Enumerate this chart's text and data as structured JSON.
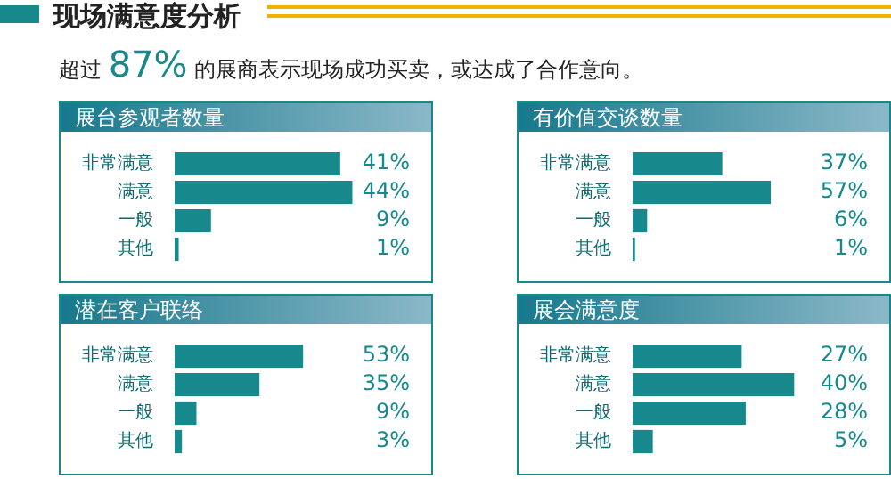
{
  "chart_data": [
    {
      "type": "bar",
      "title": "现场满意度分析",
      "subtitle": "超过 87% 的展商表示现场成功买卖，或达成了合作意向。",
      "annotations": [
        "展台参观者数量"
      ],
      "orientation": "horizontal",
      "categories": [
        "非常满意",
        "满意",
        "一般",
        "其他"
      ],
      "values": [
        41,
        44,
        9,
        1
      ],
      "value_labels": [
        "41%",
        "44%",
        "9%",
        "1%"
      ],
      "color": "#17898c",
      "tick_labels": "y",
      "grid": false,
      "legend": false
    },
    {
      "type": "bar",
      "annotations": [
        "有价值交谈数量"
      ],
      "orientation": "horizontal",
      "categories": [
        "非常满意",
        "满意",
        "一般",
        "其他"
      ],
      "values": [
        37,
        57,
        6,
        1
      ],
      "value_labels": [
        "37%",
        "57%",
        "6%",
        "1%"
      ],
      "color": "#17898c",
      "tick_labels": "y",
      "grid": false,
      "legend": false
    },
    {
      "type": "bar",
      "annotations": [
        "潜在客户联络"
      ],
      "orientation": "horizontal",
      "categories": [
        "非常满意",
        "满意",
        "一般",
        "其他"
      ],
      "values": [
        53,
        35,
        9,
        3
      ],
      "value_labels": [
        "53%",
        "35%",
        "9%",
        "3%"
      ],
      "color": "#17898c",
      "tick_labels": "y",
      "grid": false,
      "legend": false
    },
    {
      "type": "bar",
      "annotations": [
        "展会满意度"
      ],
      "orientation": "horizontal",
      "categories": [
        "非常满意",
        "满意",
        "一般",
        "其他"
      ],
      "values": [
        27,
        40,
        28,
        5
      ],
      "value_labels": [
        "27%",
        "40%",
        "28%",
        "5%"
      ],
      "color": "#17898c",
      "tick_labels": "y",
      "grid": false,
      "legend": false
    }
  ]
}
